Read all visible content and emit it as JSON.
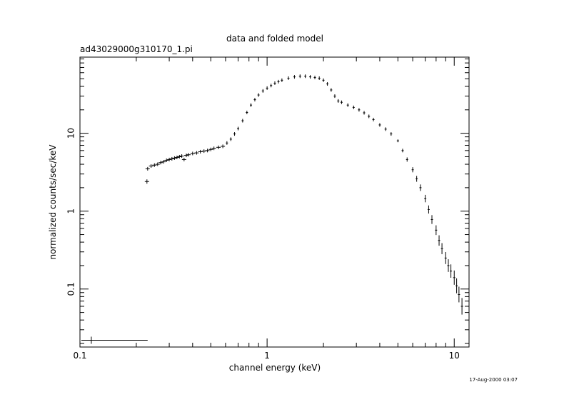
{
  "chart_data": {
    "type": "scatter",
    "title": "data and folded model",
    "subtitle": "ad43029000g310170_1.pi",
    "xlabel": "channel energy (keV)",
    "ylabel": "normalized counts/sec/keV",
    "xscale": "log",
    "yscale": "log",
    "xlim": [
      0.1,
      12
    ],
    "ylim": [
      0.018,
      95
    ],
    "grid": false,
    "legend": "none",
    "timestamp": "17-Aug-2000 03:07",
    "x_ticks": [
      {
        "value": 0.1,
        "label": "0.1"
      },
      {
        "value": 1,
        "label": "1"
      },
      {
        "value": 10,
        "label": "10"
      }
    ],
    "y_ticks": [
      {
        "value": 0.1,
        "label": "0.1"
      },
      {
        "value": 1,
        "label": "1"
      },
      {
        "value": 10,
        "label": "10"
      }
    ],
    "colors": {
      "marks": "#000000",
      "frame": "#000000",
      "background": "#ffffff"
    },
    "series": [
      {
        "x": [
          0.23,
          0.24,
          0.25,
          0.26,
          0.27,
          0.28,
          0.29,
          0.3,
          0.31,
          0.32,
          0.33,
          0.34,
          0.35,
          0.36,
          0.37,
          0.38,
          0.4,
          0.42,
          0.44,
          0.46,
          0.48,
          0.5,
          0.52,
          0.55,
          0.58,
          0.61,
          0.64,
          0.67,
          0.7,
          0.74,
          0.78,
          0.82,
          0.86,
          0.9,
          0.95,
          1.0,
          1.05,
          1.1,
          1.15,
          1.2,
          1.3,
          1.4,
          1.5,
          1.6,
          1.7,
          1.8,
          1.9,
          2.0,
          2.1,
          2.2,
          2.3,
          2.4,
          2.5,
          2.7,
          2.9,
          3.1,
          3.3,
          3.5,
          3.7,
          4.0,
          4.3,
          4.6,
          5.0,
          5.3,
          5.6,
          6.0,
          6.3,
          6.6,
          7.0,
          7.3,
          7.6,
          8.0,
          8.3,
          8.6,
          9.0,
          9.3,
          9.6,
          10.0,
          10.3,
          10.6,
          11.0
        ],
        "y": [
          3.5,
          3.8,
          3.9,
          4.0,
          4.2,
          4.3,
          4.5,
          4.6,
          4.7,
          4.8,
          4.9,
          5.0,
          5.1,
          4.6,
          5.2,
          5.3,
          5.5,
          5.6,
          5.8,
          5.9,
          6.0,
          6.2,
          6.4,
          6.6,
          6.8,
          7.5,
          8.4,
          9.8,
          11.5,
          14.5,
          18.5,
          23,
          27,
          31,
          35,
          38,
          41,
          44,
          46,
          48,
          51,
          53,
          54,
          54,
          53,
          52,
          51,
          48,
          43,
          36,
          30,
          26,
          25,
          23,
          21.5,
          20,
          18.3,
          16.5,
          15,
          12.8,
          11.3,
          9.8,
          8.0,
          6.0,
          4.6,
          3.4,
          2.6,
          2.0,
          1.45,
          1.05,
          0.78,
          0.57,
          0.42,
          0.33,
          0.25,
          0.2,
          0.17,
          0.14,
          0.11,
          0.085,
          0.06
        ]
      }
    ],
    "outliers": [
      {
        "x": 0.228,
        "y": 2.4
      }
    ],
    "error_bar": {
      "x": 0.115,
      "xmin": 0.1,
      "xmax": 0.23,
      "y": 0.022
    }
  }
}
